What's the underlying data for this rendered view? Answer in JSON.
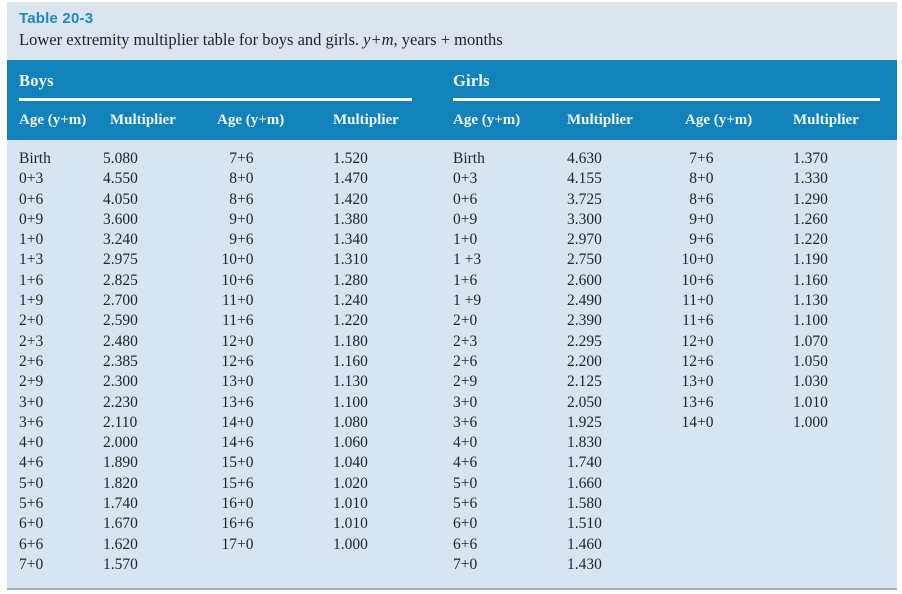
{
  "page": {
    "title": "Table 20-3",
    "caption": {
      "prefix": "Lower extremity multiplier table for boys and girls. ",
      "italic": "y+m",
      "suffix": ", years + months"
    }
  },
  "colors": {
    "band_blue": "#1283ba",
    "title_blue": "#1b8ac1",
    "body_bg": "#d8e4f1",
    "caption_bg": "#dce4ee"
  },
  "tables": [
    {
      "section": "Boys",
      "columns": [
        "Age (y+m)",
        "Multiplier",
        "Age (y+m)",
        "Multiplier"
      ],
      "rows": [
        [
          "Birth",
          "5.080",
          "7+6",
          "1.520"
        ],
        [
          "0+3",
          "4.550",
          "8+0",
          "1.470"
        ],
        [
          "0+6",
          "4.050",
          "8+6",
          "1.420"
        ],
        [
          "0+9",
          "3.600",
          "9+0",
          "1.380"
        ],
        [
          "1+0",
          "3.240",
          "9+6",
          "1.340"
        ],
        [
          "1+3",
          "2.975",
          "10+0",
          "1.310"
        ],
        [
          "1+6",
          "2.825",
          "10+6",
          "1.280"
        ],
        [
          "1+9",
          "2.700",
          "11+0",
          "1.240"
        ],
        [
          "2+0",
          "2.590",
          "11+6",
          "1.220"
        ],
        [
          "2+3",
          "2.480",
          "12+0",
          "1.180"
        ],
        [
          "2+6",
          "2.385",
          "12+6",
          "1.160"
        ],
        [
          "2+9",
          "2.300",
          "13+0",
          "1.130"
        ],
        [
          "3+0",
          "2.230",
          "13+6",
          "1.100"
        ],
        [
          "3+6",
          "2.110",
          "14+0",
          "1.080"
        ],
        [
          "4+0",
          "2.000",
          "14+6",
          "1.060"
        ],
        [
          "4+6",
          "1.890",
          "15+0",
          "1.040"
        ],
        [
          "5+0",
          "1.820",
          "15+6",
          "1.020"
        ],
        [
          "5+6",
          "1.740",
          "16+0",
          "1.010"
        ],
        [
          "6+0",
          "1.670",
          "16+6",
          "1.010"
        ],
        [
          "6+6",
          "1.620",
          "17+0",
          "1.000"
        ],
        [
          "7+0",
          "1.570",
          "",
          ""
        ]
      ]
    },
    {
      "section": "Girls",
      "columns": [
        "Age (y+m)",
        "Multiplier",
        "Age (y+m)",
        "Multiplier"
      ],
      "rows": [
        [
          "Birth",
          "4.630",
          "7+6",
          "1.370"
        ],
        [
          "0+3",
          "4.155",
          "8+0",
          "1.330"
        ],
        [
          "0+6",
          "3.725",
          "8+6",
          "1.290"
        ],
        [
          "0+9",
          "3.300",
          "9+0",
          "1.260"
        ],
        [
          "1+0",
          "2.970",
          "9+6",
          "1.220"
        ],
        [
          "1 +3",
          "2.750",
          "10+0",
          "1.190"
        ],
        [
          "1+6",
          "2.600",
          "10+6",
          "1.160"
        ],
        [
          "1 +9",
          "2.490",
          "11+0",
          "1.130"
        ],
        [
          "2+0",
          "2.390",
          "11+6",
          "1.100"
        ],
        [
          "2+3",
          "2.295",
          "12+0",
          "1.070"
        ],
        [
          "2+6",
          "2.200",
          "12+6",
          "1.050"
        ],
        [
          "2+9",
          "2.125",
          "13+0",
          "1.030"
        ],
        [
          "3+0",
          "2.050",
          "13+6",
          "1.010"
        ],
        [
          "3+6",
          "1.925",
          "14+0",
          "1.000"
        ],
        [
          "4+0",
          "1.830",
          "",
          ""
        ],
        [
          "4+6",
          "1.740",
          "",
          ""
        ],
        [
          "5+0",
          "1.660",
          "",
          ""
        ],
        [
          "5+6",
          "1.580",
          "",
          ""
        ],
        [
          "6+0",
          "1.510",
          "",
          ""
        ],
        [
          "6+6",
          "1.460",
          "",
          ""
        ],
        [
          "7+0",
          "1.430",
          "",
          ""
        ]
      ]
    }
  ]
}
